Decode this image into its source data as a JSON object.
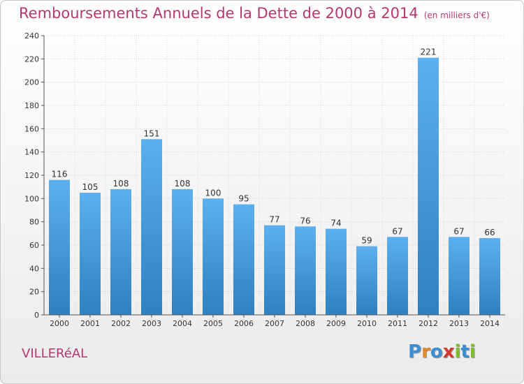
{
  "header": {
    "title": "Remboursements Annuels de la Dette de 2000 à 2014",
    "unit": "(en milliers d'€)"
  },
  "footer": {
    "commune": "VILLERéAL",
    "logo_letters": [
      {
        "ch": "P",
        "color": "#3a8fd6"
      },
      {
        "ch": "r",
        "color": "#e8872a"
      },
      {
        "ch": "o",
        "color": "#3a8fd6"
      },
      {
        "ch": "x",
        "color": "#d6362e"
      },
      {
        "ch": "i",
        "color": "#7bbf2a"
      },
      {
        "ch": "t",
        "color": "#3a8fd6"
      },
      {
        "ch": "i",
        "color": "#7bbf2a"
      }
    ]
  },
  "chart_data": {
    "type": "bar",
    "title": "Remboursements Annuels de la Dette de 2000 à 2014",
    "subtitle": "(en milliers d'€)",
    "categories": [
      "2000",
      "2001",
      "2002",
      "2003",
      "2004",
      "2005",
      "2006",
      "2007",
      "2008",
      "2009",
      "2010",
      "2011",
      "2012",
      "2013",
      "2014"
    ],
    "values": [
      116,
      105,
      108,
      151,
      108,
      100,
      95,
      77,
      76,
      74,
      59,
      67,
      221,
      67,
      66
    ],
    "ylim": [
      0,
      240
    ],
    "yticks": [
      0,
      20,
      40,
      60,
      80,
      100,
      120,
      140,
      160,
      180,
      200,
      220,
      240
    ],
    "grid": true,
    "bar_color": "#4a9ee0"
  }
}
